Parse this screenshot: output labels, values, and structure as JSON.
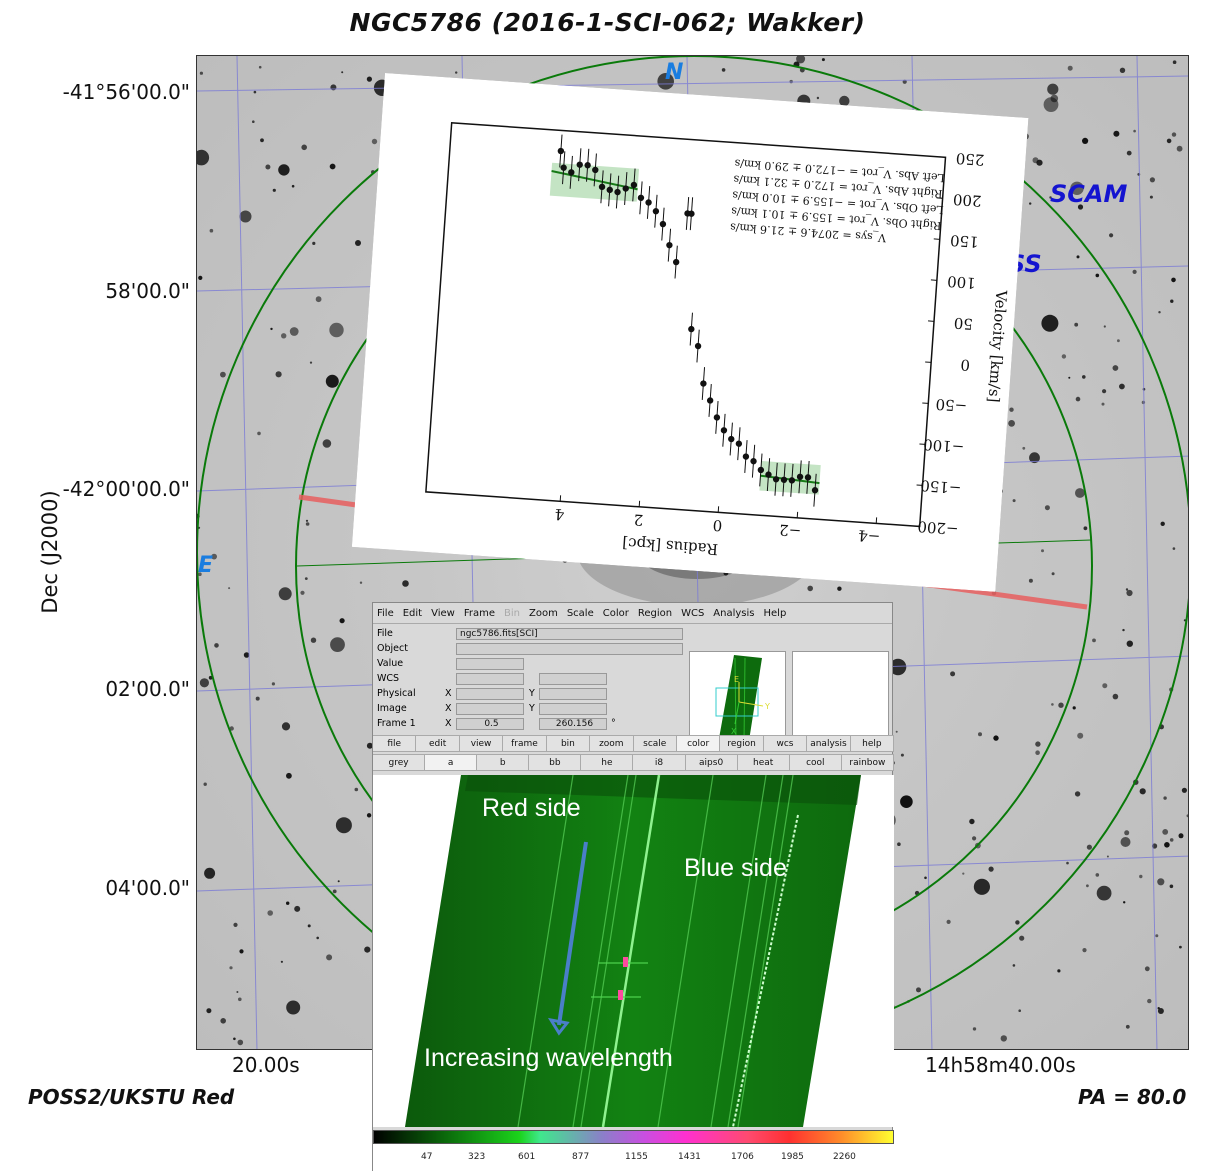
{
  "title": "NGC5786 (2016-1-SCI-062; Wakker)",
  "axes": {
    "dec_title": "Dec (J2000)",
    "dec_ticks": [
      "-41°56'00.0\"",
      "58'00.0\"",
      "-42°00'00.0\"",
      "02'00.0\"",
      "04'00.0\""
    ],
    "ra_ticks": [
      "20.00s",
      "14h58m40.00s"
    ]
  },
  "footer": {
    "survey": "POSS2/UKSTU Red",
    "pa": "PA = 80.0"
  },
  "sky_labels": {
    "north": "N",
    "east": "E",
    "scam": "SCAM",
    "ss": "SS"
  },
  "colors": {
    "circle": "#0a7a0a",
    "slit": "#e86060",
    "grid": "#7b7bd6",
    "compass": "#1a7de0",
    "instrument": "#1414d0"
  },
  "rotation_plot": {
    "xlabel": "Radius [kpc]",
    "ylabel": "Velocity [km/s]",
    "xticks": [
      "4",
      "2",
      "0",
      "−2",
      "−4"
    ],
    "yticks": [
      "250",
      "200",
      "150",
      "100",
      "50",
      "0",
      "−50",
      "−100",
      "−150",
      "−200"
    ],
    "legend": [
      "Left Abs. V_rot = −172.0 ± 29.0 km/s",
      "Right Abs. V_rot = 172.0 ± 32.1 km/s",
      "Left Obs. V_rot = −155.9 ± 10.0 km/s",
      "Right Obs. V_rot = 155.9 ± 10.1 km/s",
      "V_sys = 2074.6 ± 21.6 km/s"
    ]
  },
  "chart_data": {
    "type": "scatter",
    "xlabel": "Radius [kpc]",
    "ylabel": "Velocity [km/s]",
    "xlim": [
      -5.1,
      7.4
    ],
    "ylim": [
      -200,
      250
    ],
    "points": [
      [
        4.6,
        225
      ],
      [
        4.5,
        205
      ],
      [
        4.3,
        200
      ],
      [
        4.1,
        210
      ],
      [
        3.9,
        210
      ],
      [
        3.7,
        205
      ],
      [
        3.5,
        185
      ],
      [
        3.3,
        182
      ],
      [
        3.1,
        180
      ],
      [
        2.9,
        185
      ],
      [
        2.7,
        190
      ],
      [
        2.5,
        175
      ],
      [
        2.3,
        170
      ],
      [
        2.1,
        160
      ],
      [
        1.9,
        145
      ],
      [
        1.7,
        120
      ],
      [
        1.5,
        100
      ],
      [
        1.3,
        160
      ],
      [
        1.2,
        160
      ],
      [
        1.0,
        20
      ],
      [
        0.8,
        0
      ],
      [
        0.6,
        -45
      ],
      [
        0.4,
        -65
      ],
      [
        0.2,
        -85
      ],
      [
        0.0,
        -100
      ],
      [
        -0.2,
        -110
      ],
      [
        -0.4,
        -115
      ],
      [
        -0.6,
        -130
      ],
      [
        -0.8,
        -135
      ],
      [
        -1.0,
        -145
      ],
      [
        -1.2,
        -150
      ],
      [
        -1.4,
        -155
      ],
      [
        -1.6,
        -155
      ],
      [
        -1.8,
        -155
      ],
      [
        -2.0,
        -150
      ],
      [
        -2.2,
        -150
      ],
      [
        -2.4,
        -165
      ]
    ],
    "error": 20,
    "band_left": {
      "x": [
        2.6,
        4.8
      ],
      "y": 190,
      "half": 20
    },
    "band_right": {
      "x": [
        -1.0,
        -2.5
      ],
      "y": -152,
      "half": 18
    }
  },
  "ds9": {
    "menu": [
      "File",
      "Edit",
      "View",
      "Frame",
      "Bin",
      "Zoom",
      "Scale",
      "Color",
      "Region",
      "WCS",
      "Analysis",
      "Help"
    ],
    "info": {
      "file_label": "File",
      "file_value": "ngc5786.fits[SCI]",
      "object_label": "Object",
      "value_label": "Value",
      "wcs_label": "WCS",
      "physical_label": "Physical",
      "image_label": "Image",
      "frame_label": "Frame 1",
      "x": "X",
      "y": "Y",
      "frame_x": "0.5",
      "frame_y": "260.156",
      "deg": "°"
    },
    "buttons1": [
      "file",
      "edit",
      "view",
      "frame",
      "bin",
      "zoom",
      "scale",
      "color",
      "region",
      "wcs",
      "analysis",
      "help"
    ],
    "buttons2": [
      "grey",
      "a",
      "b",
      "bb",
      "he",
      "i8",
      "aips0",
      "heat",
      "cool",
      "rainbow"
    ],
    "pan_labels": {
      "e": "E",
      "y": "Y",
      "x": "X"
    },
    "colorbar_ticks": [
      "47",
      "323",
      "601",
      "877",
      "1155",
      "1431",
      "1706",
      "1985",
      "2260"
    ]
  },
  "annotations": {
    "red_side": "Red side",
    "blue_side": "Blue side",
    "increasing": "Increasing wavelength"
  }
}
